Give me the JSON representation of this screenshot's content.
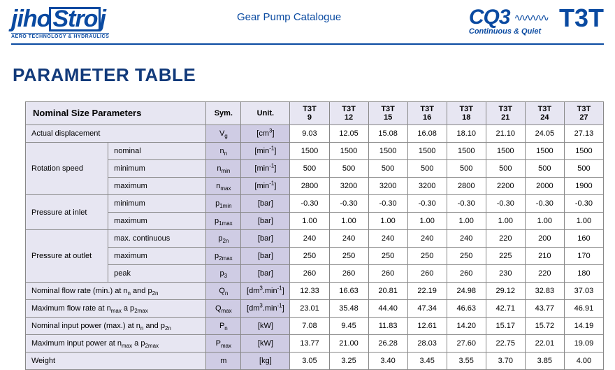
{
  "header": {
    "logo_text": "jihostroj",
    "logo_sub": "AERO TECHNOLOGY & HYDRAULICS",
    "center": "Gear Pump Catalogue",
    "cq3_main": "CQ3",
    "cq3_sub": "Continuous & Quiet",
    "t3t": "T3T"
  },
  "title": "PARAMETER TABLE",
  "table": {
    "header_name": "Nominal Size Parameters",
    "header_sym": "Sym.",
    "header_unit": "Unit.",
    "models_prefix": "T3T",
    "models": [
      "9",
      "12",
      "15",
      "16",
      "18",
      "21",
      "24",
      "27"
    ],
    "rows": [
      {
        "name": "Actual displacement",
        "span": 2,
        "sym": "V<sub class='s'>g</sub>",
        "unit": "[cm<sup>3</sup>]",
        "vals": [
          "9.03",
          "12.05",
          "15.08",
          "16.08",
          "18.10",
          "21.10",
          "24.05",
          "27.13"
        ]
      },
      {
        "group": "Rotation speed",
        "sub": "nominal",
        "sym": "n<sub class='s'>n</sub>",
        "unit": "[min<sup>-1</sup>]",
        "vals": [
          "1500",
          "1500",
          "1500",
          "1500",
          "1500",
          "1500",
          "1500",
          "1500"
        ],
        "gspan": 3
      },
      {
        "sub": "minimum",
        "sym": "n<sub class='s'>min</sub>",
        "unit": "[min<sup>-1</sup>]",
        "vals": [
          "500",
          "500",
          "500",
          "500",
          "500",
          "500",
          "500",
          "500"
        ]
      },
      {
        "sub": "maximum",
        "sym": "n<sub class='s'>max</sub>",
        "unit": "[min<sup>-1</sup>]",
        "vals": [
          "2800",
          "3200",
          "3200",
          "3200",
          "2800",
          "2200",
          "2000",
          "1900"
        ]
      },
      {
        "group": "Pressure at inlet",
        "sub": "minimum",
        "sym": "p<sub class='s'>1min</sub>",
        "unit": "[bar]",
        "vals": [
          "-0.30",
          "-0.30",
          "-0.30",
          "-0.30",
          "-0.30",
          "-0.30",
          "-0.30",
          "-0.30"
        ],
        "gspan": 2
      },
      {
        "sub": "maximum",
        "sym": "p<sub class='s'>1max</sub>",
        "unit": "[bar]",
        "vals": [
          "1.00",
          "1.00",
          "1.00",
          "1.00",
          "1.00",
          "1.00",
          "1.00",
          "1.00"
        ]
      },
      {
        "group": "Pressure at outlet",
        "sub": "max. continuous",
        "sym": "p<sub class='s'>2n</sub>",
        "unit": "[bar]",
        "vals": [
          "240",
          "240",
          "240",
          "240",
          "240",
          "220",
          "200",
          "160"
        ],
        "gspan": 3
      },
      {
        "sub": "maximum",
        "sym": "p<sub class='s'>2max</sub>",
        "unit": "[bar]",
        "vals": [
          "250",
          "250",
          "250",
          "250",
          "250",
          "225",
          "210",
          "170"
        ]
      },
      {
        "sub": "peak",
        "sym": "p<sub class='s'>3</sub>",
        "unit": "[bar]",
        "vals": [
          "260",
          "260",
          "260",
          "260",
          "260",
          "230",
          "220",
          "180"
        ]
      },
      {
        "name": "Nominal flow rate (min.) at n<sub class='s'>n</sub> and p<sub class='s'>2n</sub>",
        "span": 2,
        "sym": "Q<sub class='s'>n</sub>",
        "unit": "[dm<sup>3</sup>.min<sup>-1</sup>]",
        "vals": [
          "12.33",
          "16.63",
          "20.81",
          "22.19",
          "24.98",
          "29.12",
          "32.83",
          "37.03"
        ]
      },
      {
        "name": "Maximum flow rate at n<sub class='s'>max</sub> a p<sub class='s'>2max</sub>",
        "span": 2,
        "sym": "Q<sub class='s'>max</sub>",
        "unit": "[dm<sup>3</sup>.min<sup>-1</sup>]",
        "vals": [
          "23.01",
          "35.48",
          "44.40",
          "47.34",
          "46.63",
          "42.71",
          "43.77",
          "46.91"
        ]
      },
      {
        "name": "Nominal input power (max.) at n<sub class='s'>n</sub> and p<sub class='s'>2n</sub>",
        "span": 2,
        "sym": "P<sub class='s'>n</sub>",
        "unit": "[kW]",
        "vals": [
          "7.08",
          "9.45",
          "11.83",
          "12.61",
          "14.20",
          "15.17",
          "15.72",
          "14.19"
        ]
      },
      {
        "name": "Maximum input power at n<sub class='s'>max</sub> a p<sub class='s'>2max</sub>",
        "span": 2,
        "sym": "P<sub class='s'>max</sub>",
        "unit": "[kW]",
        "vals": [
          "13.77",
          "21.00",
          "26.28",
          "28.03",
          "27.60",
          "22.75",
          "22.01",
          "19.09"
        ]
      },
      {
        "name": "Weight",
        "span": 2,
        "sym": "m",
        "unit": "[kg]",
        "vals": [
          "3.05",
          "3.25",
          "3.40",
          "3.45",
          "3.55",
          "3.70",
          "3.85",
          "4.00"
        ]
      }
    ]
  },
  "colors": {
    "brand": "#0a4aa1",
    "head_bg": "#e7e6f2",
    "sym_bg": "#cfcce4",
    "border": "#888888"
  }
}
